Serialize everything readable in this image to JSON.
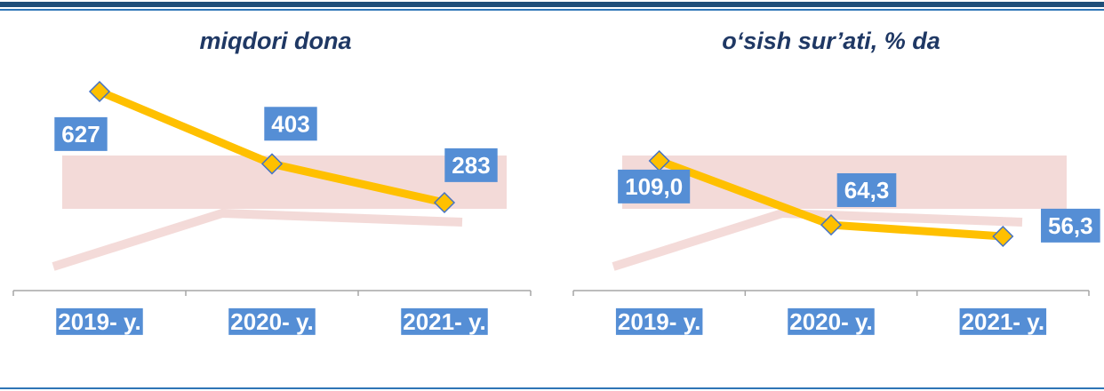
{
  "chart_data": [
    {
      "type": "line",
      "title": "miqdori dona",
      "categories": [
        "2019- y.",
        "2020- y.",
        "2021- y."
      ],
      "values": [
        627,
        403,
        283
      ],
      "color": "#ffc000"
    },
    {
      "type": "line",
      "title": "o‘sish sur’ati, % da",
      "categories": [
        "2019- y.",
        "2020- y.",
        "2021- y."
      ],
      "values": [
        109.0,
        64.3,
        56.3
      ],
      "value_labels": [
        "109,0",
        "64,3",
        "56,3"
      ],
      "color": "#ffc000"
    }
  ]
}
